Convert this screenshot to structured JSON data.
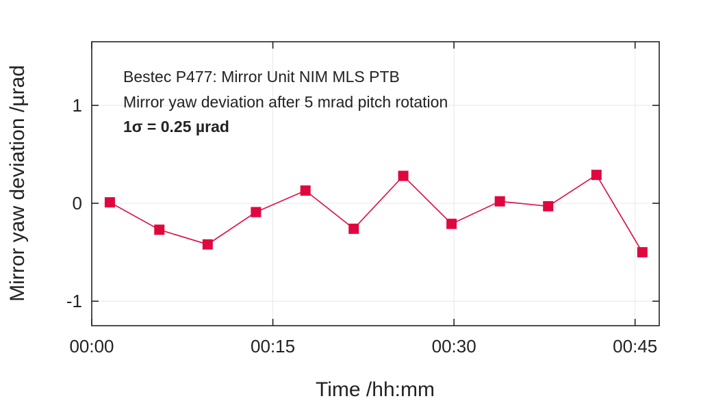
{
  "chart_data": {
    "type": "line",
    "xlabel": "Time /hh:mm",
    "ylabel": "Mirror yaw deviation /µrad",
    "xlim": [
      0,
      47
    ],
    "ylim": [
      -1.25,
      1.65
    ],
    "x_ticks": [
      {
        "value": 0,
        "label": "00:00"
      },
      {
        "value": 15,
        "label": "00:15"
      },
      {
        "value": 30,
        "label": "00:30"
      },
      {
        "value": 45,
        "label": "00:45"
      }
    ],
    "y_ticks": [
      {
        "value": 1,
        "label": "1"
      },
      {
        "value": 0,
        "label": "0"
      },
      {
        "value": -1,
        "label": "-1"
      }
    ],
    "grid": true,
    "annotations": [
      "Bestec P477: Mirror Unit NIM MLS PTB",
      "Mirror yaw deviation after 5 mrad pitch rotation",
      "1σ = 0.25 µrad"
    ],
    "series": [
      {
        "color": "#e0073f",
        "marker": "square",
        "x": [
          1.5,
          5.6,
          9.6,
          13.6,
          17.7,
          21.7,
          25.8,
          29.8,
          33.8,
          37.8,
          41.8,
          45.6
        ],
        "y": [
          0.01,
          -0.27,
          -0.42,
          -0.09,
          0.13,
          -0.26,
          0.28,
          -0.21,
          0.02,
          -0.03,
          0.29,
          -0.5
        ]
      }
    ]
  }
}
